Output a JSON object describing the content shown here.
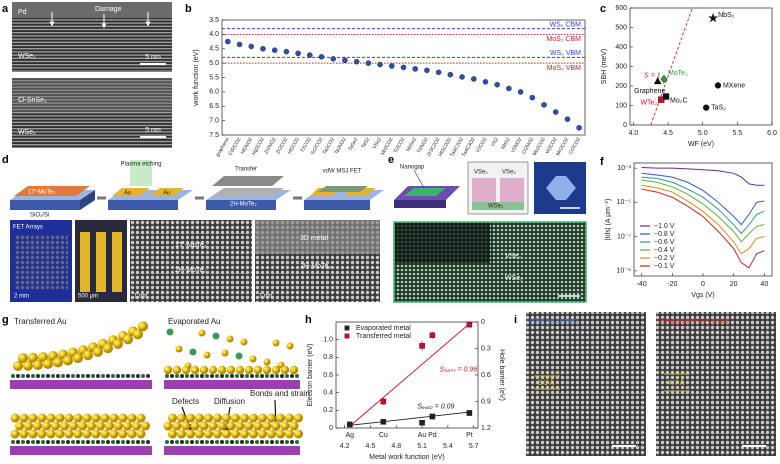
{
  "figure_panels": {
    "a": {
      "letter": "a",
      "pd": "Pd",
      "damage": "Damage",
      "wse2_top": "WSe₂",
      "scale_top": "5 nm",
      "clsnse2": "Cl-SnSe₂",
      "wse2_bottom": "WSe₂",
      "scale_bottom": "5 nm"
    },
    "d": {
      "letter": "d",
      "mote2_1t": "1T′-MoTe₂",
      "substrate": "SiO₂/Si",
      "etching": "Plasma etching",
      "au_left": "Au",
      "au_right": "Au",
      "transfer": "Transfer",
      "mote2_2h": "2H-MoTe₂",
      "fet": "vdW MSJ FET",
      "arrays": "FET Arrays",
      "scale_mm": "2 mm",
      "scale_um": "500 μm",
      "tem_1t": "1T′-MoTe₂",
      "tem_2h": "2H-MoTe₂",
      "scale_nm1": "1 nm",
      "metal": "3D metal",
      "tem_2h_b": "2H-MoTe₂",
      "scale_nm2": "1 nm"
    },
    "e": {
      "letter": "e",
      "nanogap": "Nanogap",
      "vse2_left": "VSe₂",
      "vse2_right": "VSe₂",
      "wse2_inset": "WSe₂",
      "vse2_img": "VSe₂",
      "wse2_img": "WSe₂"
    },
    "g": {
      "letter": "g",
      "transferred": "Transferred Au",
      "evaporated": "Evaporated Au",
      "defects": "Defects",
      "diffusion": "Diffusion",
      "bonds": "Bonds and strain"
    },
    "i": {
      "letter": "i",
      "vdw": "vdW Au contact",
      "evap": "Evaporated Au contact",
      "gap_vdw": "3.3 Å",
      "gap_evap": "4.7 Å"
    }
  },
  "chart_data": [
    {
      "type": "scatter",
      "panel": "b",
      "ylabel": "work function (eV)",
      "categories": [
        "graphene",
        "Cd2CO2",
        "Hf2NO2",
        "Hg2CO2",
        "Zr2NO2",
        "Zr2CO2",
        "Hf2CO2",
        "Y2CO2",
        "Sc2CO2",
        "Ta2CO2",
        "Ta2NO2",
        "TaSe2",
        "TaS2",
        "VSe2",
        "Nb2CO2",
        "Ti2CO2",
        "NbSe2",
        "Ti2NO2",
        "Zr3C2O2",
        "Hf3C2O2",
        "Ta3C2O2",
        "Ta4C3O2",
        "V2CO2",
        "VS2",
        "NbS2",
        "V2NO2",
        "Cr2NO2",
        "Mo2CO2",
        "W2CO2",
        "Mn2CO2",
        "Cr2CO2"
      ],
      "series": [
        {
          "color": "#2f4fa8",
          "marker": "circle",
          "values": [
            4.25,
            4.35,
            4.42,
            4.5,
            4.55,
            4.6,
            4.66,
            4.72,
            4.78,
            4.85,
            4.9,
            4.95,
            5.0,
            5.05,
            5.1,
            5.15,
            5.2,
            5.25,
            5.32,
            5.4,
            5.48,
            5.55,
            5.65,
            5.75,
            5.88,
            6.0,
            6.2,
            6.45,
            6.7,
            6.95,
            7.25
          ]
        }
      ],
      "ylim": [
        7.5,
        3.5
      ],
      "yticks": [
        3.5,
        {
          "value": 4,
          "label": "4.0"
        },
        4.5,
        {
          "value": 5,
          "label": "5.0"
        },
        5.5,
        {
          "value": 6,
          "label": "6.0"
        },
        6.5,
        {
          "value": 7,
          "label": "7.0"
        },
        7.5
      ],
      "reference_lines": [
        {
          "label": "WS₂ CBM",
          "value": 3.8,
          "color": "#3b3bd6"
        },
        {
          "label": "MoS₂ CBM",
          "value": 4.0,
          "color": "#d0202a"
        },
        {
          "label": "WS₂ VBM",
          "value": 4.8,
          "color": "#3b3bd6"
        },
        {
          "label": "MoS₂ VBM",
          "value": 5.0,
          "color": "#d0202a"
        }
      ]
    },
    {
      "type": "scatter",
      "panel": "c",
      "xlabel": "WF (eV)",
      "ylabel": "SBH (meV)",
      "series": [
        {
          "x": [
            5.15,
            5.22,
            5.05,
            4.35,
            4.44,
            4.4,
            4.47
          ],
          "values": [
            548,
            203,
            89,
            224,
            235,
            130,
            146
          ],
          "point_labels": [
            "NbS₂",
            "MXene",
            "TaS₂",
            "Graphene",
            "MoTe₂",
            "WTe₂",
            "Mo₂C"
          ],
          "colors": [
            "#111111",
            "#111111",
            "#111111",
            "#111111",
            "#2e9a3a",
            "#c8102e",
            "#111111"
          ],
          "markers": [
            "star",
            "circle",
            "circle",
            "triangle",
            "diamond",
            "square",
            "square"
          ]
        }
      ],
      "xlim": [
        3.95,
        6.0
      ],
      "xticks": [
        {
          "value": 4,
          "label": "4.0"
        },
        4.5,
        {
          "value": 5,
          "label": "5.0"
        },
        5.5,
        {
          "value": 6,
          "label": "6.0"
        }
      ],
      "ylim": [
        0,
        600
      ],
      "yticks": [
        0,
        100,
        200,
        300,
        400,
        500,
        600
      ],
      "fit_lines": [
        {
          "label": "S = 1",
          "color": "#d0202a",
          "x": [
            4.25,
            4.85
          ],
          "y": [
            0,
            600
          ]
        }
      ]
    },
    {
      "type": "line",
      "panel": "f",
      "xlabel": "Vgs (V)",
      "ylabel": "|Ids| (A μm⁻¹)",
      "ylog": true,
      "legend": "lower left",
      "x": [
        -40,
        -30,
        -20,
        -10,
        0,
        10,
        20,
        25,
        30,
        35,
        40
      ],
      "series": [
        {
          "name": "−1.0 V",
          "color": "#6a2a8f",
          "values": [
            0.0011,
            0.001,
            0.001,
            0.0009,
            0.0008,
            0.0007,
            0.0005,
            0.0003,
            0.00012,
            0.0001,
            0.0001
          ]
        },
        {
          "name": "−0.8 V",
          "color": "#3a55c8",
          "values": [
            0.0005,
            0.0004,
            0.0003,
            0.00015,
            5e-05,
            1e-05,
            1.5e-06,
            5e-07,
            2e-06,
            1e-05,
            1.2e-05
          ]
        },
        {
          "name": "−0.6 V",
          "color": "#2a9d8f",
          "values": [
            0.0003,
            0.00025,
            0.00015,
            6e-05,
            2e-05,
            4e-06,
            5e-07,
            1.5e-07,
            5e-07,
            2e-06,
            3e-06
          ]
        },
        {
          "name": "−0.4 V",
          "color": "#6aaa3a",
          "values": [
            0.0002,
            0.00015,
            8e-05,
            3e-05,
            8e-06,
            1.5e-06,
            2e-07,
            5e-08,
            1.5e-07,
            4e-07,
            5e-07
          ]
        },
        {
          "name": "−0.2 V",
          "color": "#e08a1e",
          "values": [
            0.0001,
            7e-05,
            4e-05,
            1.2e-05,
            3e-06,
            5e-07,
            5e-08,
            1e-08,
            2e-08,
            8e-08,
            1e-07
          ]
        },
        {
          "name": "−0.1 V",
          "color": "#c0262d",
          "values": [
            6e-05,
            4e-05,
            2e-05,
            6e-06,
            1.5e-06,
            2e-07,
            2e-08,
            3e-09,
            1.5e-09,
            1e-08,
            1.5e-08
          ]
        }
      ],
      "xlim": [
        -45,
        45
      ],
      "xticks": [
        -40,
        -20,
        0,
        20,
        40
      ],
      "ylim": [
        5e-10,
        0.002
      ],
      "yticks": [
        {
          "value": 1e-09,
          "label": "10⁻⁹"
        },
        {
          "value": 1e-07,
          "label": "10⁻⁷"
        },
        {
          "value": 1e-05,
          "label": "10⁻⁵"
        },
        {
          "value": 0.001,
          "label": "10⁻³"
        }
      ]
    },
    {
      "type": "scatter",
      "panel": "h",
      "xlabel": "Metal work function (eV)",
      "ylabel": "Electron barrier (eV)",
      "y2label": "Hole barrier (eV)",
      "legend": "upper left",
      "series": [
        {
          "name": "Evaporated metal",
          "color": "#222222",
          "marker": "square",
          "x": [
            4.26,
            4.65,
            5.1,
            5.22,
            5.65
          ],
          "values": [
            0.04,
            0.07,
            0.06,
            0.13,
            0.17
          ],
          "errors": [
            0.02,
            0.02,
            0.02,
            0.02,
            0.02
          ]
        },
        {
          "name": "Transferred metal",
          "color": "#c8102e",
          "marker": "square",
          "x": [
            4.65,
            5.1,
            5.22,
            5.65
          ],
          "values": [
            0.3,
            0.93,
            1.05,
            1.17
          ],
          "errors": [
            0.04,
            0.06,
            0.04,
            0.03
          ]
        }
      ],
      "metal_labels": {
        "names": [
          "Ag",
          "Cu",
          "Au",
          "Pd",
          "Pt"
        ],
        "x": [
          4.26,
          4.65,
          5.1,
          5.22,
          5.65
        ]
      },
      "xlim": [
        4.1,
        5.75
      ],
      "xticks": [
        4.2,
        4.5,
        4.8,
        5.1,
        5.4,
        5.7
      ],
      "ylim": [
        0,
        1.2
      ],
      "yticks": [
        0,
        0.2,
        0.4,
        0.6,
        0.8,
        {
          "value": 1,
          "label": "1.0"
        }
      ],
      "y2lim": [
        1.2,
        0
      ],
      "y2ticks": [
        1.2,
        0.9,
        0.6,
        0.3,
        0
      ],
      "fit_lines": [
        {
          "label": "Sₜᵣₐₙₛ = 0.96",
          "color": "#c8102e",
          "x": [
            4.26,
            5.65
          ],
          "y": [
            0.02,
            1.18
          ]
        },
        {
          "label": "Sₑᵥₐₚ = 0.09",
          "color": "#222222",
          "x": [
            4.26,
            5.65
          ],
          "y": [
            0.03,
            0.18
          ]
        }
      ]
    }
  ]
}
